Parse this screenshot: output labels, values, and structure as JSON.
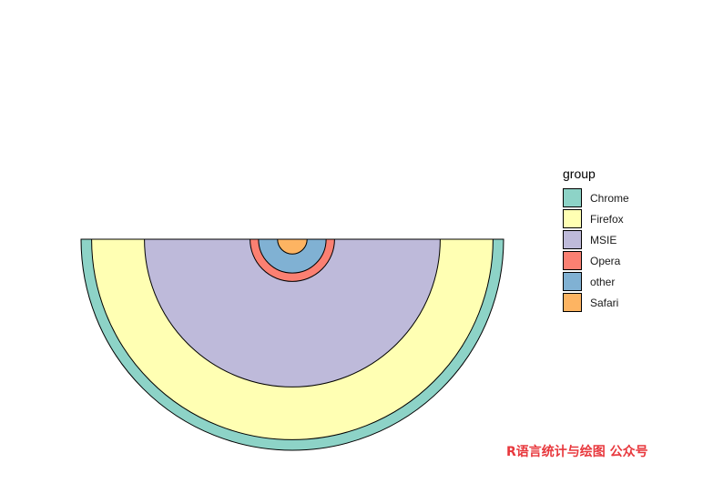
{
  "chart_data": {
    "type": "pie",
    "variant": "nested-semicircle",
    "legend_title": "group",
    "legend_position": "right",
    "series": [
      {
        "name": "Chrome",
        "value": 1.0,
        "color": "#8DD3C7"
      },
      {
        "name": "Firefox",
        "value": 0.95,
        "color": "#FFFFB3"
      },
      {
        "name": "MSIE",
        "value": 0.7,
        "color": "#BEBADA"
      },
      {
        "name": "Opera",
        "value": 0.2,
        "color": "#FB8072"
      },
      {
        "name": "other",
        "value": 0.16,
        "color": "#80B1D3"
      },
      {
        "name": "Safari",
        "value": 0.07,
        "color": "#FDB462"
      }
    ]
  },
  "watermark": "R语言统计与绘图 公众号"
}
